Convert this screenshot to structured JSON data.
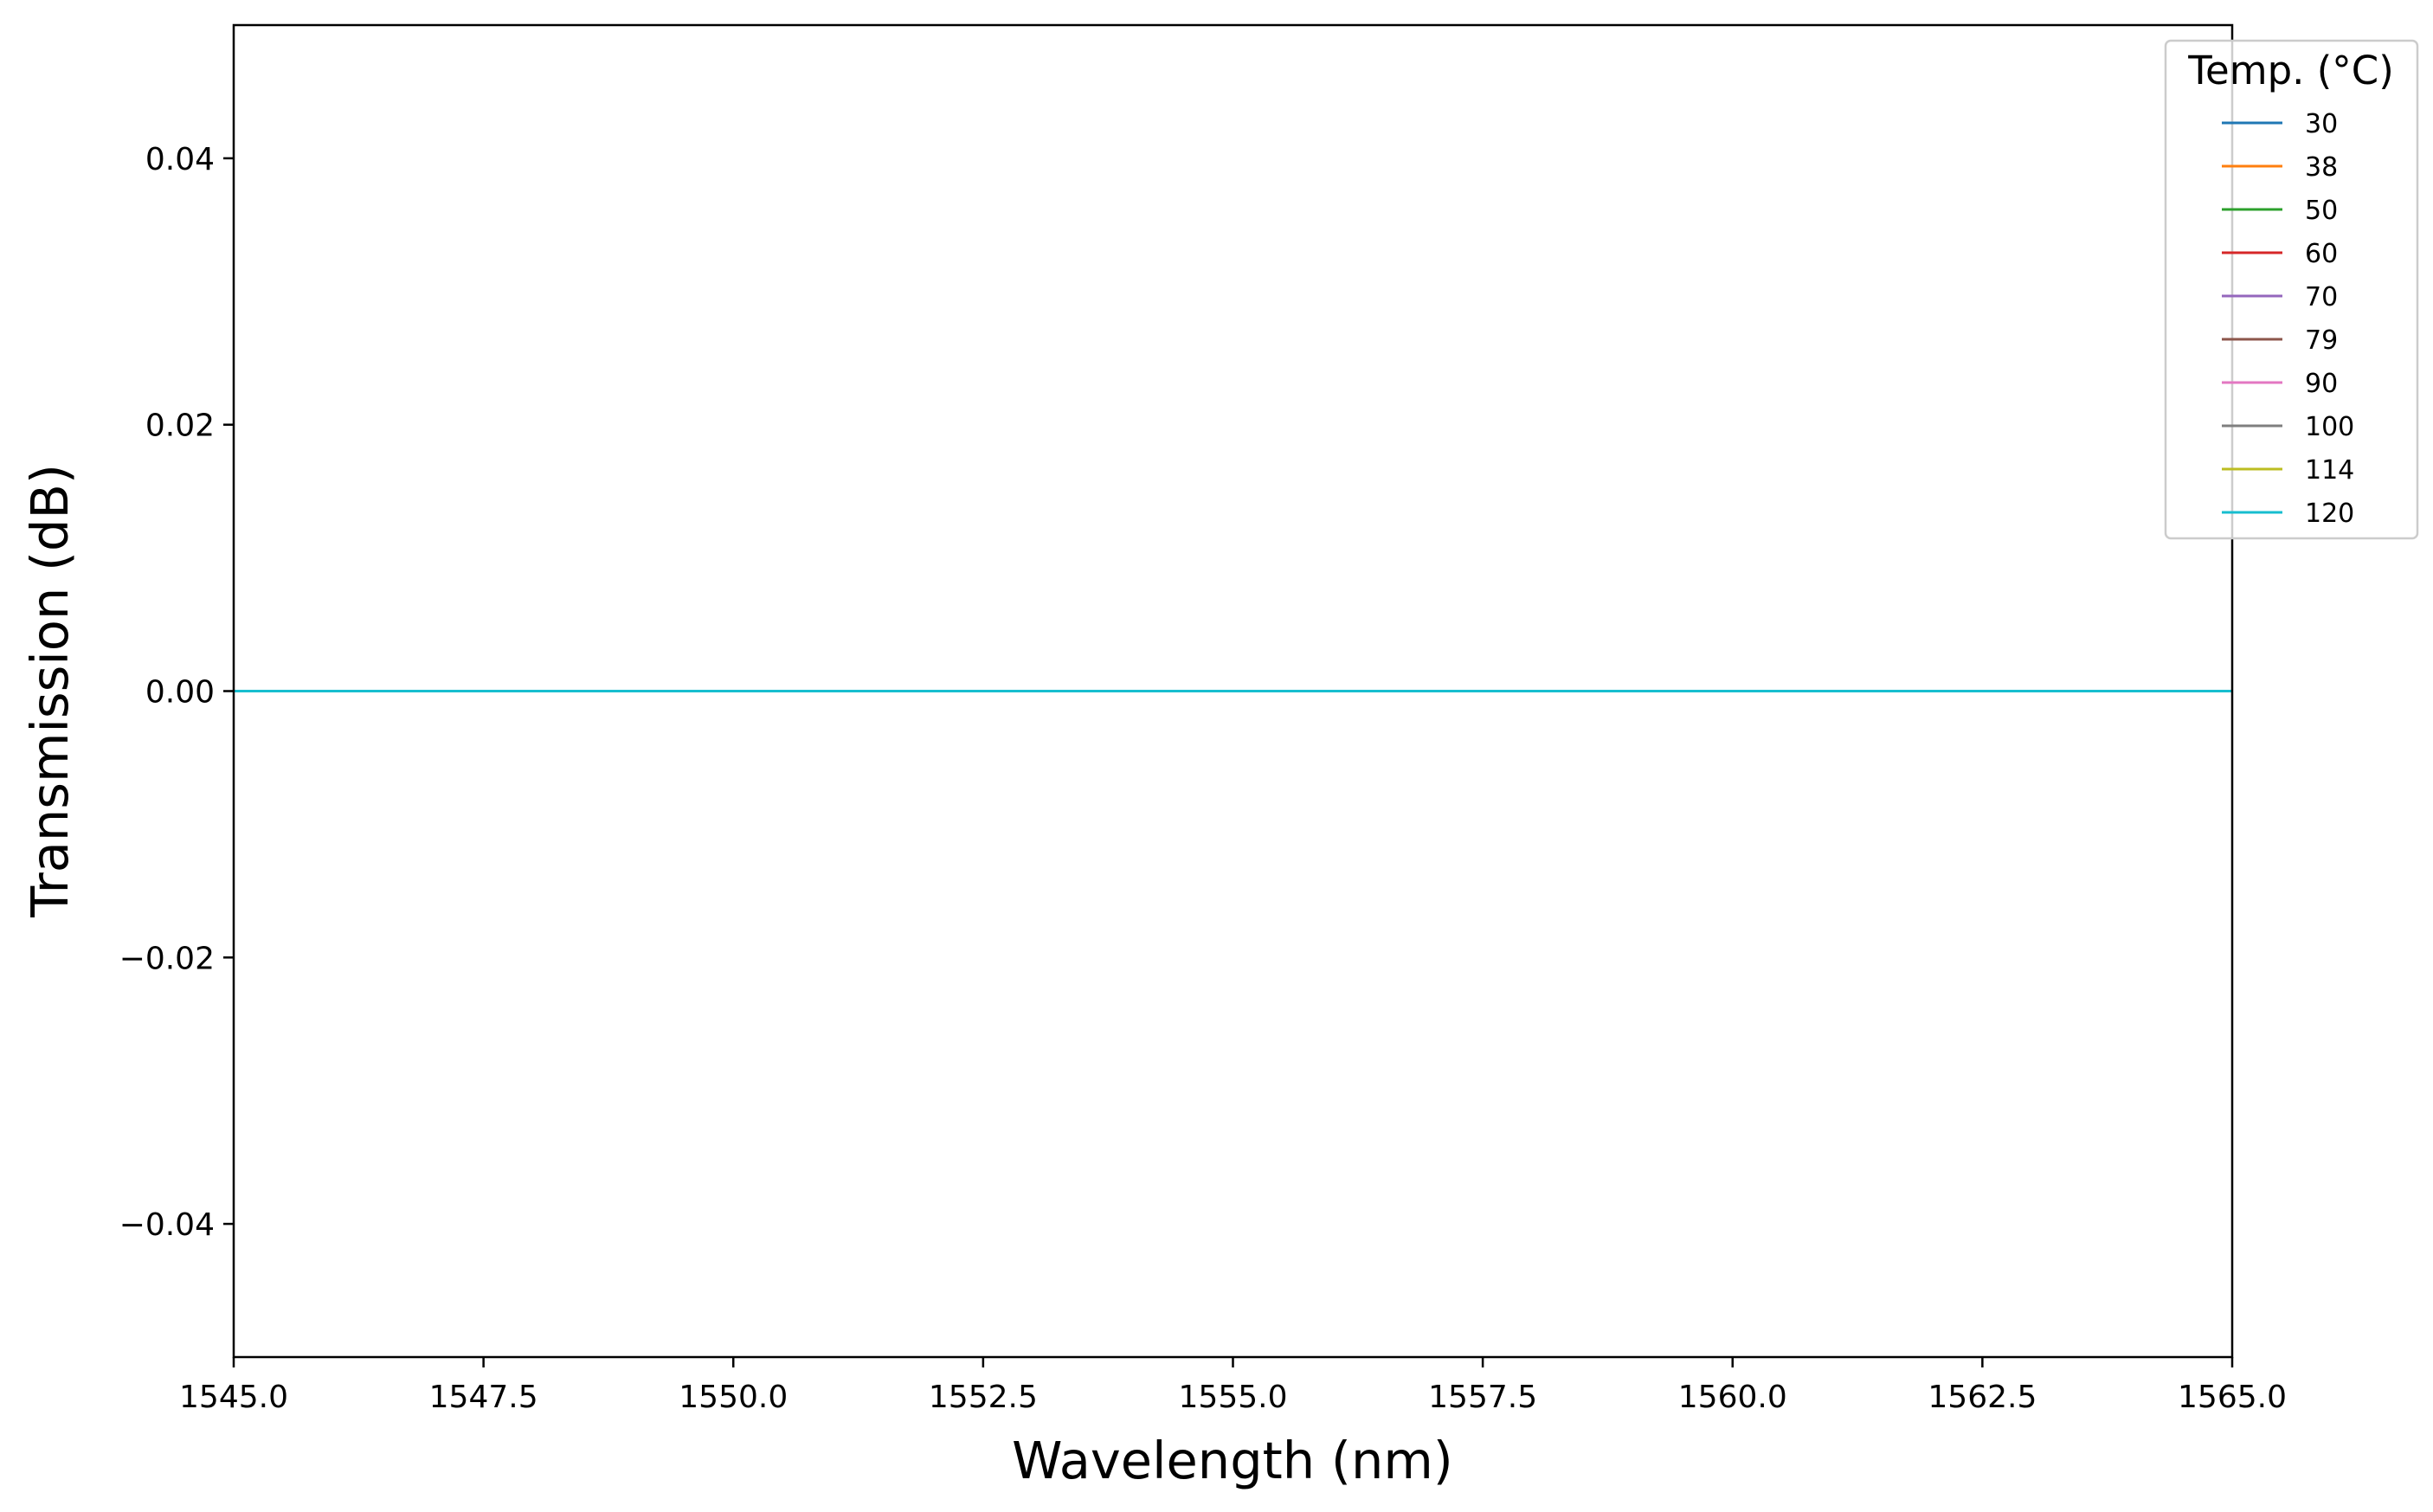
{
  "chart_data": {
    "type": "line",
    "xlabel": "Wavelength (nm)",
    "ylabel": "Transmission (dB)",
    "xlim": [
      1545.0,
      1565.0
    ],
    "ylim": [
      -0.05,
      0.05
    ],
    "xticks": [
      1545.0,
      1547.5,
      1550.0,
      1552.5,
      1555.0,
      1557.5,
      1560.0,
      1562.5,
      1565.0
    ],
    "xtick_labels": [
      "1545.0",
      "1547.5",
      "1550.0",
      "1552.5",
      "1555.0",
      "1557.5",
      "1560.0",
      "1562.5",
      "1565.0"
    ],
    "yticks": [
      0.04,
      0.02,
      0.0,
      -0.02,
      -0.04
    ],
    "ytick_labels": [
      "0.04",
      "0.02",
      "0.00",
      "−0.02",
      "−0.04"
    ],
    "grid": false,
    "legend": {
      "title": "Temp. (°C)",
      "placement": "top-right"
    },
    "series": [
      {
        "name": "30",
        "color": "#1f77b4",
        "x": [
          1545.0,
          1565.0
        ],
        "y": [
          0.0,
          0.0
        ]
      },
      {
        "name": "38",
        "color": "#ff7f0e",
        "x": [
          1545.0,
          1565.0
        ],
        "y": [
          0.0,
          0.0
        ]
      },
      {
        "name": "50",
        "color": "#2ca02c",
        "x": [
          1545.0,
          1565.0
        ],
        "y": [
          0.0,
          0.0
        ]
      },
      {
        "name": "60",
        "color": "#d62728",
        "x": [
          1545.0,
          1565.0
        ],
        "y": [
          0.0,
          0.0
        ]
      },
      {
        "name": "70",
        "color": "#9467bd",
        "x": [
          1545.0,
          1565.0
        ],
        "y": [
          0.0,
          0.0
        ]
      },
      {
        "name": "79",
        "color": "#8c564b",
        "x": [
          1545.0,
          1565.0
        ],
        "y": [
          0.0,
          0.0
        ]
      },
      {
        "name": "90",
        "color": "#e377c2",
        "x": [
          1545.0,
          1565.0
        ],
        "y": [
          0.0,
          0.0
        ]
      },
      {
        "name": "100",
        "color": "#7f7f7f",
        "x": [
          1545.0,
          1565.0
        ],
        "y": [
          0.0,
          0.0
        ]
      },
      {
        "name": "114",
        "color": "#bcbd22",
        "x": [
          1545.0,
          1565.0
        ],
        "y": [
          0.0,
          0.0
        ]
      },
      {
        "name": "120",
        "color": "#17becf",
        "x": [
          1545.0,
          1565.0
        ],
        "y": [
          0.0,
          0.0
        ]
      }
    ]
  }
}
